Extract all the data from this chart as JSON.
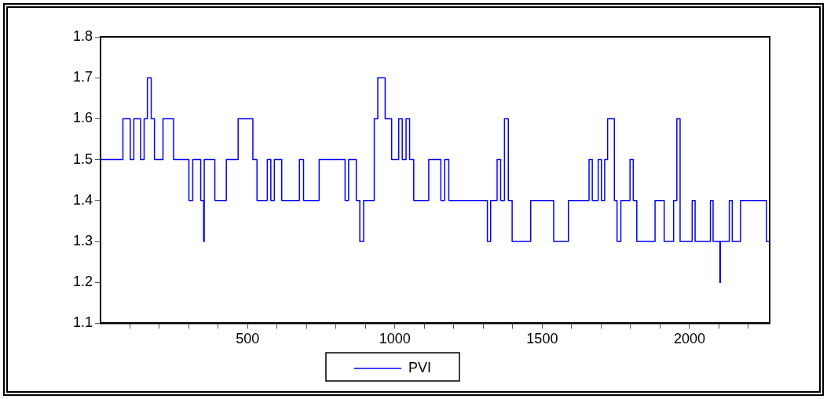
{
  "chart_data": {
    "type": "step",
    "x": [
      1,
      77,
      102,
      114,
      137,
      149,
      160,
      173,
      184,
      213,
      249,
      301,
      314,
      341,
      351,
      353,
      389,
      428,
      468,
      518,
      532,
      567,
      579,
      591,
      616,
      676,
      690,
      743,
      831,
      843,
      869,
      881,
      894,
      930,
      942,
      967,
      989,
      1013,
      1025,
      1038,
      1050,
      1064,
      1115,
      1156,
      1169,
      1183,
      1314,
      1325,
      1347,
      1359,
      1372,
      1385,
      1398,
      1461,
      1539,
      1589,
      1659,
      1670,
      1690,
      1701,
      1712,
      1722,
      1745,
      1754,
      1767,
      1798,
      1809,
      1821,
      1883,
      1914,
      1946,
      1957,
      1968,
      2009,
      2019,
      2071,
      2080,
      2103,
      2105,
      2135,
      2145,
      2173,
      2261,
      2272
    ],
    "series": [
      {
        "name": "PVI",
        "color": "#0000ff",
        "values": [
          1.5,
          1.6,
          1.5,
          1.6,
          1.5,
          1.6,
          1.7,
          1.6,
          1.5,
          1.6,
          1.5,
          1.4,
          1.5,
          1.4,
          1.3,
          1.5,
          1.4,
          1.5,
          1.6,
          1.5,
          1.4,
          1.5,
          1.4,
          1.5,
          1.4,
          1.5,
          1.4,
          1.5,
          1.4,
          1.5,
          1.4,
          1.3,
          1.4,
          1.6,
          1.7,
          1.6,
          1.5,
          1.6,
          1.5,
          1.6,
          1.5,
          1.4,
          1.5,
          1.4,
          1.5,
          1.4,
          1.3,
          1.4,
          1.5,
          1.4,
          1.6,
          1.4,
          1.3,
          1.4,
          1.3,
          1.4,
          1.5,
          1.4,
          1.5,
          1.4,
          1.5,
          1.6,
          1.4,
          1.3,
          1.4,
          1.5,
          1.4,
          1.3,
          1.4,
          1.3,
          1.4,
          1.6,
          1.3,
          1.4,
          1.3,
          1.4,
          1.3,
          1.2,
          1.3,
          1.4,
          1.3,
          1.4,
          1.3,
          1.3
        ]
      }
    ],
    "xlim": [
      1,
      2272
    ],
    "xticks": [
      {
        "value": 100,
        "label": null
      },
      {
        "value": 200,
        "label": null
      },
      {
        "value": 300,
        "label": null
      },
      {
        "value": 400,
        "label": null
      },
      500,
      {
        "value": 600,
        "label": null
      },
      {
        "value": 700,
        "label": null
      },
      {
        "value": 800,
        "label": null
      },
      {
        "value": 900,
        "label": null
      },
      1000,
      {
        "value": 1100,
        "label": null
      },
      {
        "value": 1200,
        "label": null
      },
      {
        "value": 1300,
        "label": null
      },
      {
        "value": 1400,
        "label": null
      },
      1500,
      {
        "value": 1600,
        "label": null
      },
      {
        "value": 1700,
        "label": null
      },
      {
        "value": 1800,
        "label": null
      },
      {
        "value": 1900,
        "label": null
      },
      2000,
      {
        "value": 2100,
        "label": null
      },
      {
        "value": 2200,
        "label": null
      }
    ],
    "ylim": [
      1.1,
      1.8
    ],
    "yticks": [
      1.1,
      1.2,
      1.3,
      1.4,
      1.5,
      1.6,
      1.7,
      1.8
    ],
    "grid": false,
    "legend": "bottom"
  }
}
